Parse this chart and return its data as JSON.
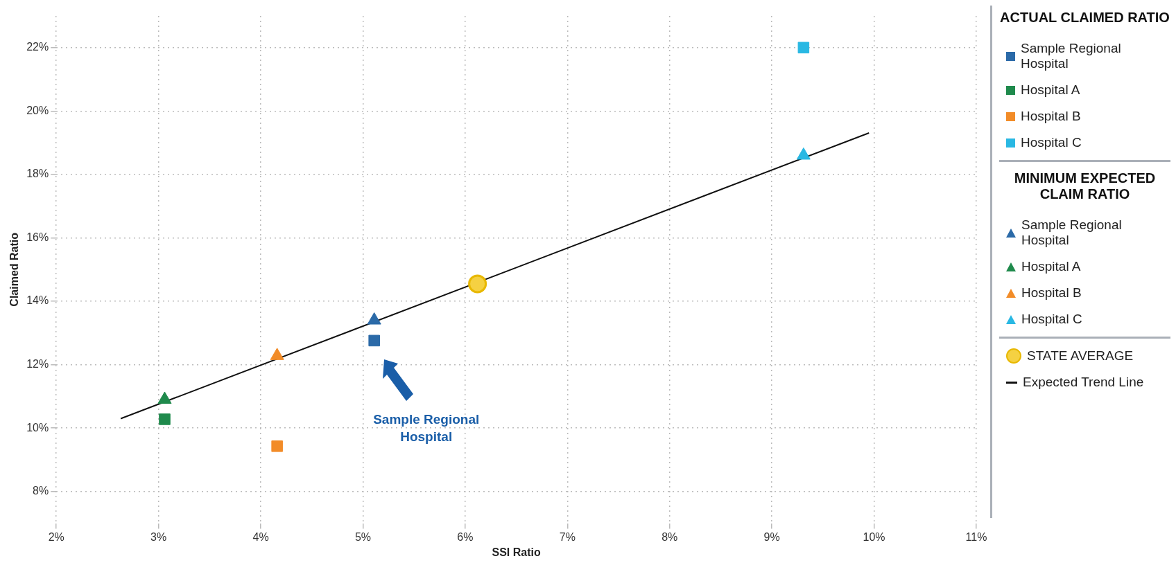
{
  "chart_data": {
    "type": "scatter",
    "xlabel": "SSI Ratio",
    "ylabel": "Claimed Ratio",
    "legend_title": "ACTUAL CLAIMED RATIO",
    "annotations": [
      "MINIMUM EXPECTED CLAIM RATIO",
      "Sample Regional Hospital"
    ],
    "xlim": [
      2,
      11
    ],
    "ylim": [
      7,
      23
    ],
    "xticks": [
      {
        "value": 2,
        "label": "2%"
      },
      {
        "value": 3,
        "label": "3%"
      },
      {
        "value": 4,
        "label": "4%"
      },
      {
        "value": 5,
        "label": "5%"
      },
      {
        "value": 6,
        "label": "6%"
      },
      {
        "value": 7,
        "label": "7%"
      },
      {
        "value": 8,
        "label": "8%"
      },
      {
        "value": 9,
        "label": "9%"
      },
      {
        "value": 10,
        "label": "10%"
      },
      {
        "value": 11,
        "label": "11%"
      }
    ],
    "yticks": [
      {
        "value": 8,
        "label": "8%"
      },
      {
        "value": 10,
        "label": "10%"
      },
      {
        "value": 12,
        "label": "12%"
      },
      {
        "value": 14,
        "label": "14%"
      },
      {
        "value": 16,
        "label": "16%"
      },
      {
        "value": 18,
        "label": "18%"
      },
      {
        "value": 20,
        "label": "20%"
      },
      {
        "value": 22,
        "label": "22%"
      }
    ],
    "grid": true,
    "legend": "right",
    "series": [
      {
        "name": "Sample Regional Hospital",
        "color": "#2b6aa8",
        "marker": "square",
        "x": [
          5.11
        ],
        "values": [
          12.76
        ]
      },
      {
        "name": "Hospital A",
        "color": "#1f8a4c",
        "marker": "square",
        "x": [
          3.06
        ],
        "values": [
          10.28
        ]
      },
      {
        "name": "Hospital B",
        "color": "#f28c28",
        "marker": "square",
        "x": [
          4.16
        ],
        "values": [
          9.43
        ]
      },
      {
        "name": "Hospital C",
        "color": "#29b8e3",
        "marker": "square",
        "x": [
          9.31
        ],
        "values": [
          22.0
        ]
      },
      {
        "name": "Sample Regional Hospital",
        "color": "#2b6aa8",
        "marker": "triangle",
        "x": [
          5.11
        ],
        "values": [
          13.4
        ]
      },
      {
        "name": "Hospital A",
        "color": "#1f8a4c",
        "marker": "triangle",
        "x": [
          3.06
        ],
        "values": [
          10.9
        ]
      },
      {
        "name": "Hospital B",
        "color": "#f28c28",
        "marker": "triangle",
        "x": [
          4.16
        ],
        "values": [
          12.28
        ]
      },
      {
        "name": "Hospital C",
        "color": "#29b8e3",
        "marker": "triangle",
        "x": [
          9.31
        ],
        "values": [
          18.6
        ]
      },
      {
        "name": "STATE AVERAGE",
        "color": "#f5d142",
        "marker": "circle",
        "x": [
          6.12
        ],
        "values": [
          14.55
        ]
      },
      {
        "name": "Expected Trend Line",
        "color": "#111111",
        "type": "line",
        "marker": "none",
        "x": [
          2.63,
          9.95
        ],
        "values": [
          10.3,
          19.31
        ]
      }
    ]
  }
}
